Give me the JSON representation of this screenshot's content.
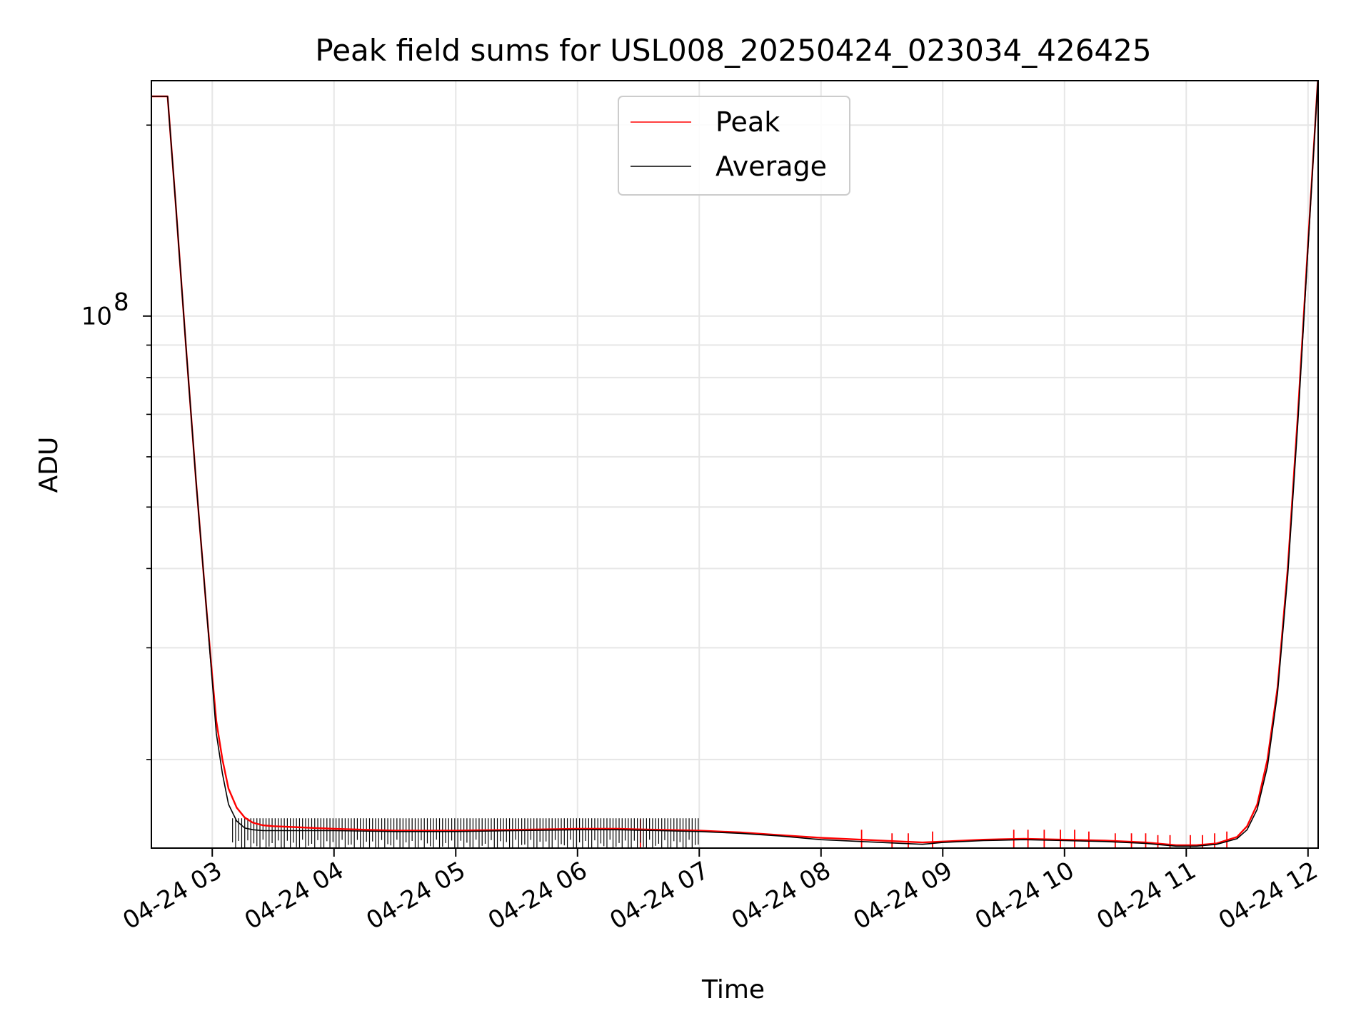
{
  "chart_data": {
    "type": "line",
    "title": "Peak field sums for USL008_20250424_023034_426425",
    "xlabel": "Time",
    "ylabel": "ADU",
    "x_scale": "time",
    "y_scale": "log",
    "xlim": [
      "2025-04-24 02:30",
      "2025-04-24 12:05"
    ],
    "ylim": [
      14500000,
      235000000
    ],
    "x_ticks": [
      "04-24 03",
      "04-24 04",
      "04-24 05",
      "04-24 06",
      "04-24 07",
      "04-24 08",
      "04-24 09",
      "04-24 10",
      "04-24 11",
      "04-24 12"
    ],
    "y_major_tick": {
      "value": 100000000,
      "base": "10",
      "exponent": "8"
    },
    "grid": true,
    "legend_position": "top-center",
    "series": [
      {
        "name": "Peak",
        "color": "#ff0000",
        "x": [
          "02:30",
          "02:35",
          "02:38",
          "02:42",
          "02:47",
          "02:52",
          "02:57",
          "03:00",
          "03:02",
          "03:05",
          "03:08",
          "03:12",
          "03:16",
          "03:20",
          "03:25",
          "03:30",
          "03:40",
          "03:50",
          "04:00",
          "04:30",
          "05:00",
          "05:30",
          "06:00",
          "06:20",
          "06:40",
          "07:00",
          "07:20",
          "07:40",
          "08:00",
          "08:20",
          "08:40",
          "08:50",
          "09:00",
          "09:20",
          "09:40",
          "10:00",
          "10:20",
          "10:40",
          "10:55",
          "11:05",
          "11:15",
          "11:25",
          "11:30",
          "11:35",
          "11:40",
          "11:45",
          "11:50",
          "11:55",
          "12:00",
          "12:05"
        ],
        "y": [
          222000000,
          222000000,
          222000000,
          150000000,
          90000000,
          55000000,
          35000000,
          27000000,
          23000000,
          20000000,
          18000000,
          16800000,
          16200000,
          15900000,
          15750000,
          15700000,
          15650000,
          15600000,
          15550000,
          15450000,
          15450000,
          15500000,
          15550000,
          15550000,
          15500000,
          15450000,
          15350000,
          15200000,
          15050000,
          14950000,
          14850000,
          14800000,
          14850000,
          14950000,
          15000000,
          14950000,
          14900000,
          14800000,
          14650000,
          14650000,
          14750000,
          15100000,
          15700000,
          17000000,
          20000000,
          26000000,
          40000000,
          70000000,
          130000000,
          240000000
        ],
        "spikes": [
          {
            "x": "06:31",
            "y": 16100000
          },
          {
            "x": "08:20",
            "y": 15500000
          },
          {
            "x": "08:35",
            "y": 15300000
          },
          {
            "x": "08:43",
            "y": 15300000
          },
          {
            "x": "08:55",
            "y": 15400000
          },
          {
            "x": "09:35",
            "y": 15500000
          },
          {
            "x": "09:42",
            "y": 15500000
          },
          {
            "x": "09:50",
            "y": 15500000
          },
          {
            "x": "09:58",
            "y": 15500000
          },
          {
            "x": "10:05",
            "y": 15500000
          },
          {
            "x": "10:12",
            "y": 15400000
          },
          {
            "x": "10:25",
            "y": 15300000
          },
          {
            "x": "10:33",
            "y": 15300000
          },
          {
            "x": "10:40",
            "y": 15300000
          },
          {
            "x": "10:46",
            "y": 15200000
          },
          {
            "x": "10:52",
            "y": 15200000
          },
          {
            "x": "11:02",
            "y": 15200000
          },
          {
            "x": "11:08",
            "y": 15200000
          },
          {
            "x": "11:14",
            "y": 15300000
          },
          {
            "x": "11:20",
            "y": 15400000
          }
        ]
      },
      {
        "name": "Average",
        "color": "#000000",
        "x": [
          "02:30",
          "02:35",
          "02:38",
          "02:42",
          "02:47",
          "02:52",
          "02:57",
          "03:00",
          "03:02",
          "03:05",
          "03:08",
          "03:12",
          "03:16",
          "03:20",
          "03:25",
          "03:30",
          "03:40",
          "03:50",
          "04:00",
          "04:30",
          "05:00",
          "05:30",
          "06:00",
          "06:20",
          "06:40",
          "07:00",
          "07:20",
          "07:40",
          "08:00",
          "08:20",
          "08:40",
          "08:50",
          "09:00",
          "09:20",
          "09:40",
          "10:00",
          "10:20",
          "10:40",
          "10:55",
          "11:05",
          "11:15",
          "11:25",
          "11:30",
          "11:35",
          "11:40",
          "11:45",
          "11:50",
          "11:55",
          "12:00",
          "12:05"
        ],
        "y": [
          222000000,
          222000000,
          222000000,
          150000000,
          90000000,
          55000000,
          35000000,
          26500000,
          22000000,
          19000000,
          17000000,
          16000000,
          15600000,
          15500000,
          15450000,
          15450000,
          15450000,
          15450000,
          15450000,
          15400000,
          15400000,
          15450000,
          15500000,
          15500000,
          15450000,
          15400000,
          15300000,
          15150000,
          14950000,
          14850000,
          14750000,
          14700000,
          14800000,
          14900000,
          14950000,
          14900000,
          14850000,
          14750000,
          14600000,
          14600000,
          14700000,
          15000000,
          15500000,
          16700000,
          19500000,
          25500000,
          39000000,
          68000000,
          128000000,
          240000000
        ],
        "dips": [
          {
            "from": "03:10",
            "to": "07:00",
            "y": 14950000
          }
        ]
      }
    ]
  }
}
